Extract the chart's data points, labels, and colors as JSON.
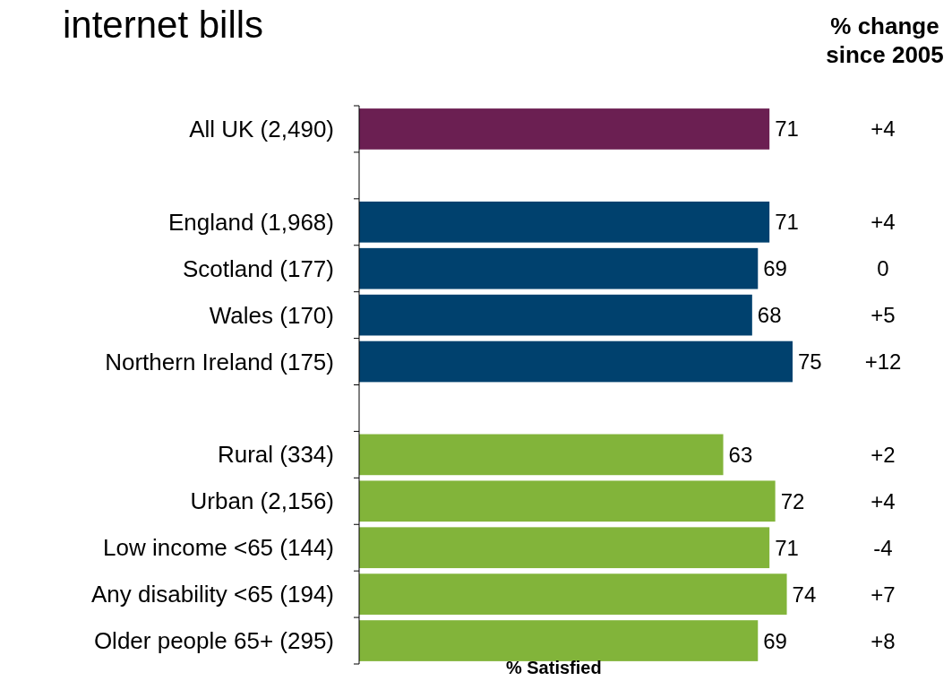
{
  "chart_data": {
    "type": "bar",
    "orientation": "horizontal",
    "title": "internet bills",
    "xlabel": "% Satisfied",
    "categories": [
      "All UK (2,490)",
      null,
      "England (1,968)",
      "Scotland (177)",
      "Wales (170)",
      "Northern Ireland (175)",
      null,
      "Rural (334)",
      "Urban (2,156)",
      "Low income <65 (144)",
      "Any disability <65 (194)",
      "Older people 65+ (295)"
    ],
    "values": [
      71,
      null,
      71,
      69,
      68,
      75,
      null,
      63,
      72,
      71,
      74,
      69
    ],
    "colors": [
      "#6b1f52",
      null,
      "#00416e",
      "#00416e",
      "#00416e",
      "#00416e",
      null,
      "#82b43a",
      "#82b43a",
      "#82b43a",
      "#82b43a",
      "#82b43a"
    ],
    "data_labels": true,
    "annotations": [
      "% change since 2005",
      "+4",
      "+4",
      "0",
      "+5",
      "+12",
      "+2",
      "+4",
      "-4",
      "+7",
      "+8"
    ]
  }
}
